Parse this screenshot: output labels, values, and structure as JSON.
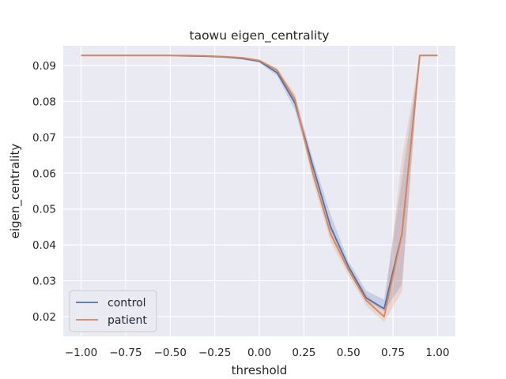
{
  "chart_data": {
    "type": "line",
    "title": "taowu eigen_centrality",
    "xlabel": "threshold",
    "ylabel": "eigen_centrality",
    "xlim": [
      -1.1,
      1.1
    ],
    "ylim": [
      0.0145,
      0.0955
    ],
    "x_ticks": [
      -1.0,
      -0.75,
      -0.5,
      -0.25,
      0.0,
      0.25,
      0.5,
      0.75,
      1.0
    ],
    "x_tick_labels": [
      "−1.00",
      "−0.75",
      "−0.50",
      "−0.25",
      "0.00",
      "0.25",
      "0.50",
      "0.75",
      "1.00"
    ],
    "y_ticks": [
      0.02,
      0.03,
      0.04,
      0.05,
      0.06,
      0.07,
      0.08,
      0.09
    ],
    "y_tick_labels": [
      "0.02",
      "0.03",
      "0.04",
      "0.05",
      "0.06",
      "0.07",
      "0.08",
      "0.09"
    ],
    "grid": true,
    "legend_position": "lower-left",
    "x": [
      -1.0,
      -0.9,
      -0.8,
      -0.7,
      -0.6,
      -0.5,
      -0.4,
      -0.3,
      -0.2,
      -0.1,
      0.0,
      0.1,
      0.2,
      0.3,
      0.4,
      0.5,
      0.6,
      0.7,
      0.8,
      0.9,
      1.0
    ],
    "series": [
      {
        "name": "control",
        "color": "#4c72b0",
        "values": [
          0.0928,
          0.0928,
          0.0928,
          0.0928,
          0.0928,
          0.0928,
          0.0927,
          0.0926,
          0.0924,
          0.092,
          0.0912,
          0.088,
          0.0795,
          0.062,
          0.045,
          0.034,
          0.0252,
          0.0222,
          0.043,
          0.0928,
          0.0928
        ],
        "ci_low": [
          0.0928,
          0.0928,
          0.0928,
          0.0928,
          0.0928,
          0.0928,
          0.0927,
          0.0925,
          0.0922,
          0.0917,
          0.0908,
          0.0871,
          0.0775,
          0.06,
          0.0432,
          0.0328,
          0.0244,
          0.0215,
          0.029,
          0.0928,
          0.0928
        ],
        "ci_high": [
          0.0928,
          0.0928,
          0.0928,
          0.0928,
          0.0928,
          0.0928,
          0.0928,
          0.0927,
          0.0926,
          0.0923,
          0.0916,
          0.0888,
          0.0815,
          0.064,
          0.0485,
          0.0355,
          0.0272,
          0.0248,
          0.058,
          0.0928,
          0.0928
        ]
      },
      {
        "name": "patient",
        "color": "#dd8452",
        "values": [
          0.0928,
          0.0928,
          0.0928,
          0.0928,
          0.0928,
          0.0928,
          0.0928,
          0.0927,
          0.0925,
          0.0922,
          0.0914,
          0.0887,
          0.0805,
          0.06,
          0.043,
          0.033,
          0.0245,
          0.02,
          0.043,
          0.0928,
          0.0928
        ],
        "ci_low": [
          0.0928,
          0.0928,
          0.0928,
          0.0928,
          0.0928,
          0.0928,
          0.0927,
          0.0926,
          0.0923,
          0.0919,
          0.0911,
          0.088,
          0.079,
          0.058,
          0.0408,
          0.0315,
          0.023,
          0.0185,
          0.027,
          0.0928,
          0.0928
        ],
        "ci_high": [
          0.0928,
          0.0928,
          0.0928,
          0.0928,
          0.0928,
          0.0928,
          0.0928,
          0.0928,
          0.0927,
          0.0924,
          0.0917,
          0.0893,
          0.082,
          0.0625,
          0.046,
          0.0345,
          0.0262,
          0.0215,
          0.064,
          0.0928,
          0.0928
        ]
      }
    ]
  }
}
